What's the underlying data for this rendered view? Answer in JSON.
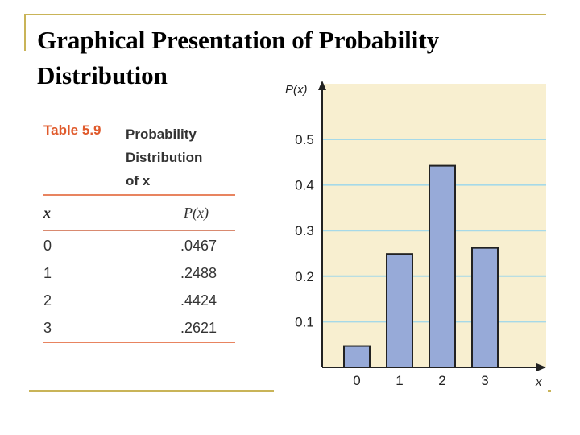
{
  "slide": {
    "title_line1": "Graphical Presentation of Probability",
    "title_line2": "Distribution"
  },
  "table": {
    "number": "Table 5.9",
    "caption_line1": "Probability",
    "caption_line2": "Distribution",
    "caption_line3": "of x",
    "col_x": "x",
    "col_p": "P(x)",
    "rows": [
      {
        "x": "0",
        "p": ".0467"
      },
      {
        "x": "1",
        "p": ".2488"
      },
      {
        "x": "2",
        "p": ".4424"
      },
      {
        "x": "3",
        "p": ".2621"
      }
    ],
    "accent_color": "#e05a2b"
  },
  "chart_data": {
    "type": "bar",
    "categories": [
      "0",
      "1",
      "2",
      "3"
    ],
    "values": [
      0.0467,
      0.2488,
      0.4424,
      0.2621
    ],
    "xlabel": "x",
    "ylabel": "P(x)",
    "yticks": [
      "0.1",
      "0.2",
      "0.3",
      "0.4",
      "0.5"
    ],
    "ylim": [
      0,
      0.5
    ],
    "grid": true,
    "colors": {
      "bar": "#97aad8",
      "background": "#f8efd0",
      "grid": "#a6d9e8"
    }
  }
}
